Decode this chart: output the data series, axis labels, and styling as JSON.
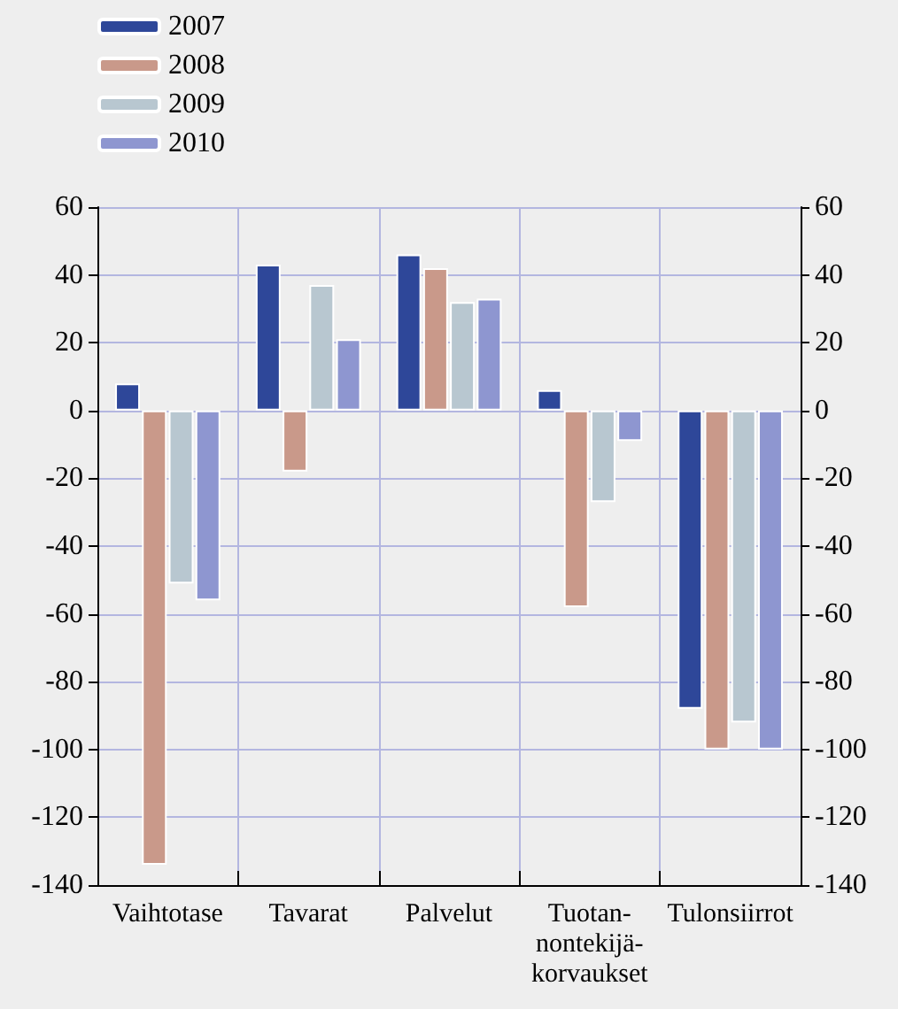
{
  "chart_data": {
    "type": "bar",
    "categories": [
      "Vaihtotase",
      "Tavarat",
      "Palvelut",
      "Tuotan-\nnontekijä-\nkorvaukset",
      "Tulonsiirrot"
    ],
    "series": [
      {
        "name": "2007",
        "color": "#2e4799",
        "values": [
          8,
          43,
          46,
          6,
          -88
        ]
      },
      {
        "name": "2008",
        "color": "#c9998a",
        "values": [
          -134,
          -18,
          42,
          -58,
          -100
        ]
      },
      {
        "name": "2009",
        "color": "#b8c7d0",
        "values": [
          -51,
          37,
          32,
          -27,
          -92
        ]
      },
      {
        "name": "2010",
        "color": "#8e96d0",
        "values": [
          -56,
          21,
          33,
          -9,
          -100
        ]
      }
    ],
    "ylim": [
      -140,
      60
    ],
    "yticks": [
      -140,
      -120,
      -100,
      -80,
      -60,
      -40,
      -20,
      0,
      20,
      40,
      60
    ],
    "y2lim": [
      -140,
      60
    ],
    "y2ticks": [
      -140,
      -120,
      -100,
      -80,
      -60,
      -40,
      -20,
      0,
      20,
      40,
      60
    ],
    "grid": true,
    "legend": "top left"
  }
}
